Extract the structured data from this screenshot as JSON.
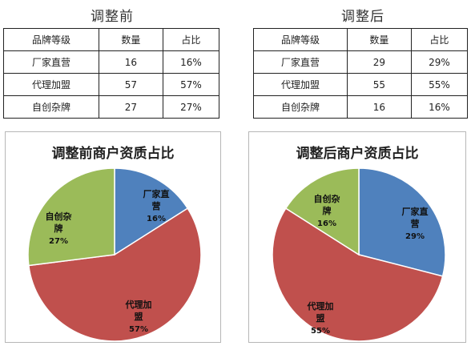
{
  "panels": [
    {
      "title": "调整前",
      "table": {
        "headers": [
          "品牌等级",
          "数量",
          "占比"
        ],
        "rows": [
          [
            "厂家直营",
            "16",
            "16%"
          ],
          [
            "代理加盟",
            "57",
            "57%"
          ],
          [
            "自创杂牌",
            "27",
            "27%"
          ]
        ]
      }
    },
    {
      "title": "调整后",
      "table": {
        "headers": [
          "品牌等级",
          "数量",
          "占比"
        ],
        "rows": [
          [
            "厂家直营",
            "29",
            "29%"
          ],
          [
            "代理加盟",
            "55",
            "55%"
          ],
          [
            "自创杂牌",
            "16",
            "16%"
          ]
        ]
      }
    }
  ],
  "chart_data": [
    {
      "type": "pie",
      "title": "调整前商户资质占比",
      "slices": [
        {
          "label_lines": [
            "厂家直",
            "营"
          ],
          "value": 16,
          "display": "16%",
          "color": "#4f81bd"
        },
        {
          "label_lines": [
            "代理加",
            "盟"
          ],
          "value": 57,
          "display": "57%",
          "color": "#c0504d"
        },
        {
          "label_lines": [
            "自创杂",
            "牌"
          ],
          "value": 27,
          "display": "27%",
          "color": "#9bbb59"
        }
      ]
    },
    {
      "type": "pie",
      "title": "调整后商户资质占比",
      "slices": [
        {
          "label_lines": [
            "厂家直",
            "营"
          ],
          "value": 29,
          "display": "29%",
          "color": "#4f81bd"
        },
        {
          "label_lines": [
            "代理加",
            "盟"
          ],
          "value": 55,
          "display": "55%",
          "color": "#c0504d"
        },
        {
          "label_lines": [
            "自创杂",
            "牌"
          ],
          "value": 16,
          "display": "16%",
          "color": "#9bbb59"
        }
      ]
    }
  ]
}
